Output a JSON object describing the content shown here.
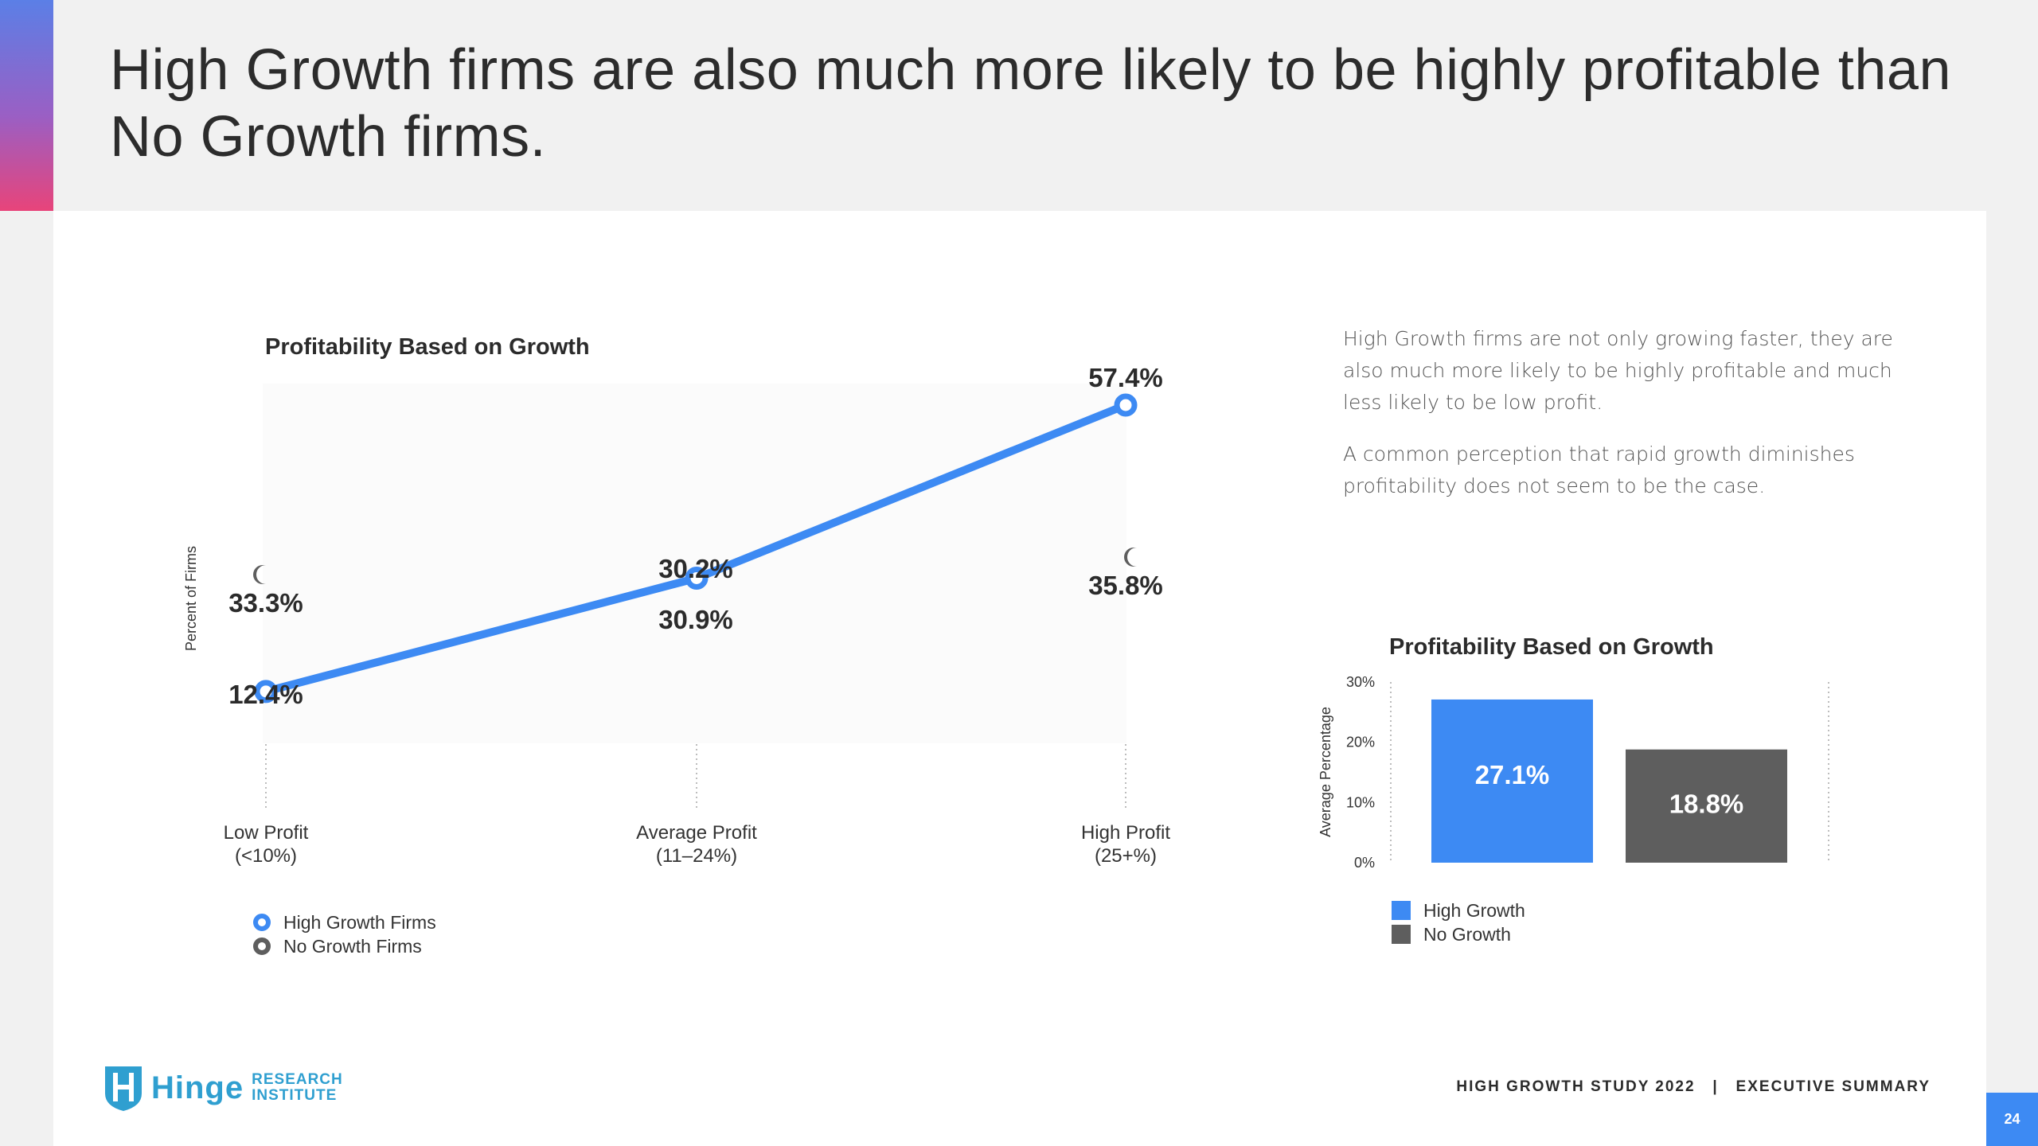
{
  "slide": {
    "title": "High Growth firms are also much more likely to be highly profitable than No Growth firms.",
    "paragraph1": "High Growth firms are not only growing faster, they are also much more likely to be highly profitable and much less likely to be low profit.",
    "paragraph2": "A common perception that rapid growth diminishes profitability does not seem to be the case.",
    "footer": "HIGH GROWTH STUDY 2022   |   EXECUTIVE SUMMARY",
    "page_number": "24",
    "logo": {
      "word": "Hinge",
      "sub_line1": "RESEARCH",
      "sub_line2": "INSTITUTE"
    }
  },
  "colors": {
    "high_growth": "#3d8af3",
    "no_growth": "#5e5e5e",
    "accent_top": "#5b7fe6",
    "accent_bottom": "#e8447a"
  },
  "chart_data": [
    {
      "type": "line",
      "title": "Profitability Based on Growth",
      "ylabel": "Percent of Firms",
      "xlabel": "",
      "categories": [
        [
          "Low Profit",
          "(<10%)"
        ],
        [
          "Average Profit",
          "(11–24%)"
        ],
        [
          "High Profit",
          "(25+%)"
        ]
      ],
      "series": [
        {
          "name": "High Growth Firms",
          "values": [
            12.4,
            30.2,
            57.4
          ],
          "labels": [
            "12.4%",
            "30.2%",
            "57.4%"
          ]
        },
        {
          "name": "No Growth Firms",
          "values": [
            33.3,
            30.9,
            35.8
          ],
          "labels": [
            "33.3%",
            "30.9%",
            "35.8%"
          ]
        }
      ],
      "ylim": [
        7.5,
        57.4
      ],
      "legend": "bottom-left"
    },
    {
      "type": "bar",
      "title": "Profitability Based on Growth",
      "ylabel": "Average Percentage",
      "categories": [
        "High Growth",
        "No Growth"
      ],
      "values": [
        27.1,
        18.8
      ],
      "labels": [
        "27.1%",
        "18.8%"
      ],
      "yticks": [
        "0%",
        "10%",
        "20%",
        "30%"
      ],
      "ytick_values": [
        0,
        10,
        20,
        30
      ],
      "ylim": [
        0,
        30
      ],
      "legend": "bottom-left"
    }
  ]
}
